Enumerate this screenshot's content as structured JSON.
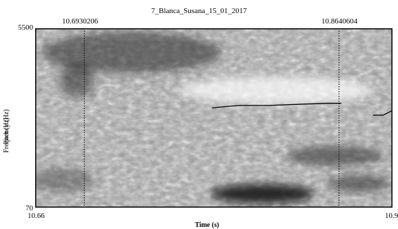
{
  "title": "7_Blanca_Susana_15_01_2017",
  "cursors": {
    "left_time": "10.6930206",
    "right_time": "10.8640604"
  },
  "y_axis": {
    "top_value": "5500",
    "bottom_value": "70",
    "title_a": "Frequency (Hz)",
    "title_b": "Pitch (Hz)"
  },
  "x_axis": {
    "left_value": "10.66",
    "right_value": "10.9",
    "title": "Time (s)"
  },
  "colors": {
    "frame": "#000000",
    "spectrogram_dark": "#1a1a1a",
    "spectrogram_light": "#ffffff",
    "pitch_line": "#000000"
  },
  "chart_data": {
    "type": "heatmap",
    "title": "7_Blanca_Susana_15_01_2017",
    "xlabel": "Time (s)",
    "ylabel": "Frequency (Hz) / Pitch (Hz)",
    "xlim": [
      10.66,
      10.9
    ],
    "ylim": [
      70,
      5500
    ],
    "cursors": [
      10.6930206,
      10.8640604
    ],
    "pitch_segments": [
      [
        [
          10.7788,
          0.4444
        ],
        [
          10.7878,
          0.4364
        ],
        [
          10.7976,
          0.4303
        ],
        [
          10.8165,
          0.4303
        ],
        [
          10.8354,
          0.4242
        ],
        [
          10.8576,
          0.4182
        ],
        [
          10.8656,
          0.4182
        ]
      ],
      [
        [
          10.887,
          0.4848
        ],
        [
          10.8937,
          0.4848
        ],
        [
          10.9,
          0.4586
        ]
      ]
    ]
  }
}
